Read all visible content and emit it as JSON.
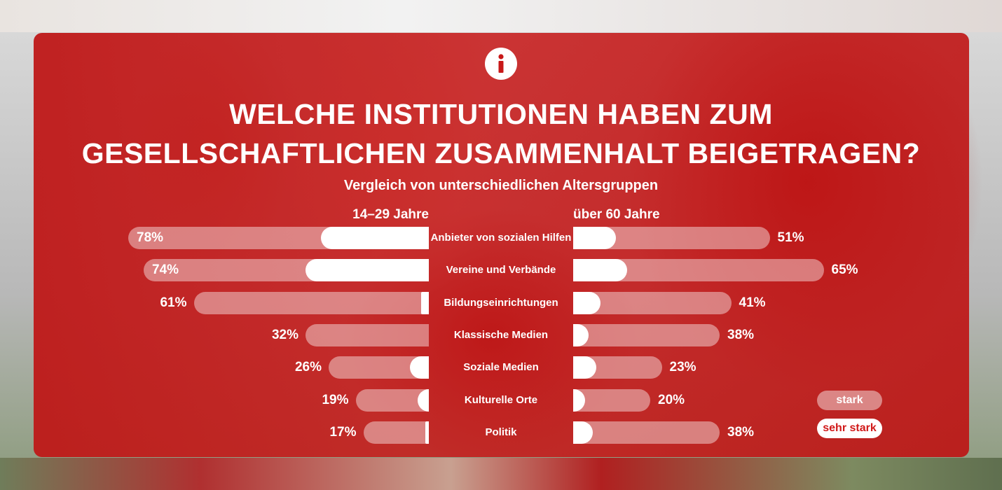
{
  "title_line1": "WELCHE INSTITUTIONEN HABEN ZUM",
  "title_line2": "GESELLSCHAFTLICHEN ZUSAMMENHALT BEIGETRAGEN?",
  "subtitle": "Vergleich von unterschiedlichen Altersgruppen",
  "legend": {
    "stark": "stark",
    "sehr_stark": "sehr stark"
  },
  "colors": {
    "panel": "#c81818",
    "accent_text": "#d11a1a",
    "bar_light": "rgba(255,255,255,0.42)",
    "bar_strong": "#ffffff"
  },
  "chart_data": {
    "type": "bar",
    "orientation": "horizontal-diverging",
    "categories": [
      "Anbieter von sozialen Hilfen",
      "Vereine und Verbände",
      "Bildungseinrichtungen",
      "Klassische Medien",
      "Soziale Medien",
      "Kulturelle Orte",
      "Politik"
    ],
    "groups": [
      {
        "name": "14–29 Jahre",
        "side": "left",
        "totals": [
          78,
          74,
          61,
          32,
          26,
          19,
          17
        ],
        "totals_labels": [
          "78%",
          "74%",
          "61%",
          "32%",
          "26%",
          "19%",
          "17%"
        ],
        "sehr_stark": [
          28,
          32,
          2,
          0,
          5,
          3,
          1
        ]
      },
      {
        "name": "über 60 Jahre",
        "side": "right",
        "totals": [
          51,
          65,
          41,
          38,
          23,
          20,
          38
        ],
        "totals_labels": [
          "51%",
          "65%",
          "41%",
          "38%",
          "23%",
          "20%",
          "38%"
        ],
        "sehr_stark": [
          11,
          14,
          7,
          4,
          6,
          3,
          5
        ]
      }
    ],
    "legend": [
      "stark",
      "sehr stark"
    ],
    "legend_position": "bottom-right"
  }
}
